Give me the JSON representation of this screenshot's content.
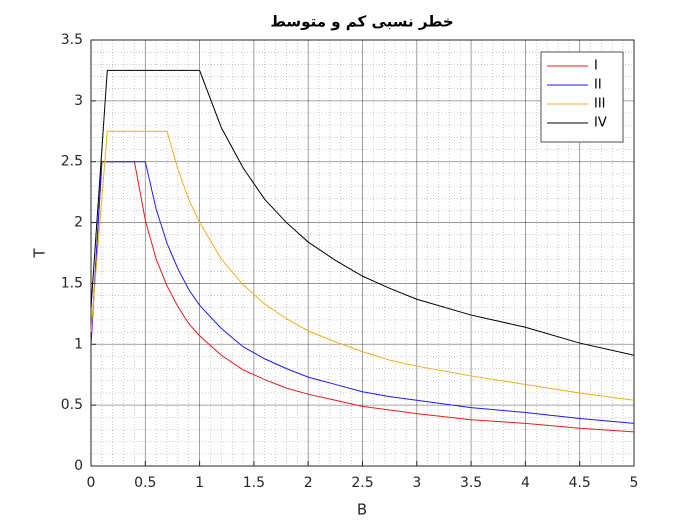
{
  "chart_data": {
    "type": "line",
    "title": "خطر نسبی کم و متوسط",
    "x_label": "B",
    "y_label": "T",
    "x": [
      0,
      0.1,
      0.15,
      0.4,
      0.5,
      0.6,
      0.7,
      0.8,
      0.9,
      1,
      1.2,
      1.4,
      1.6,
      1.8,
      2,
      2.25,
      2.5,
      2.75,
      3,
      3.5,
      4,
      4.5,
      5
    ],
    "series": [
      {
        "name": "I",
        "color": "#e0201a",
        "values": [
          1,
          2.5,
          2.5,
          2.5,
          2.02,
          1.7,
          1.48,
          1.31,
          1.17,
          1.07,
          0.91,
          0.79,
          0.71,
          0.64,
          0.59,
          0.54,
          0.49,
          0.46,
          0.43,
          0.38,
          0.35,
          0.31,
          0.28
        ]
      },
      {
        "name": "II",
        "color": "#1a1aff",
        "values": [
          1,
          2.5,
          2.5,
          2.5,
          2.5,
          2.11,
          1.83,
          1.62,
          1.45,
          1.32,
          1.13,
          0.98,
          0.88,
          0.8,
          0.73,
          0.67,
          0.61,
          0.57,
          0.54,
          0.48,
          0.44,
          0.39,
          0.35
        ]
      },
      {
        "name": "III",
        "color": "#edb120",
        "values": [
          1.1,
          2.2,
          2.75,
          2.75,
          2.75,
          2.75,
          2.75,
          2.44,
          2.19,
          2.0,
          1.7,
          1.49,
          1.33,
          1.21,
          1.11,
          1.02,
          0.94,
          0.87,
          0.82,
          0.74,
          0.67,
          0.6,
          0.54
        ]
      },
      {
        "name": "IV",
        "color": "#000000",
        "values": [
          1.3,
          2.6,
          3.25,
          3.25,
          3.25,
          3.25,
          3.25,
          3.25,
          3.25,
          3.25,
          2.78,
          2.45,
          2.19,
          2.0,
          1.84,
          1.69,
          1.56,
          1.46,
          1.37,
          1.24,
          1.14,
          1.01,
          0.91
        ]
      }
    ],
    "xlim": [
      0,
      5
    ],
    "xticks": [
      0,
      0.5,
      1,
      1.5,
      2,
      2.5,
      3,
      3.5,
      4,
      4.5,
      5
    ],
    "ylim": [
      0,
      3.5
    ],
    "yticks": [
      0,
      0.5,
      1,
      1.5,
      2,
      2.5,
      3,
      3.5
    ],
    "grid": true,
    "minor_grid": true,
    "legend": "top-right"
  }
}
